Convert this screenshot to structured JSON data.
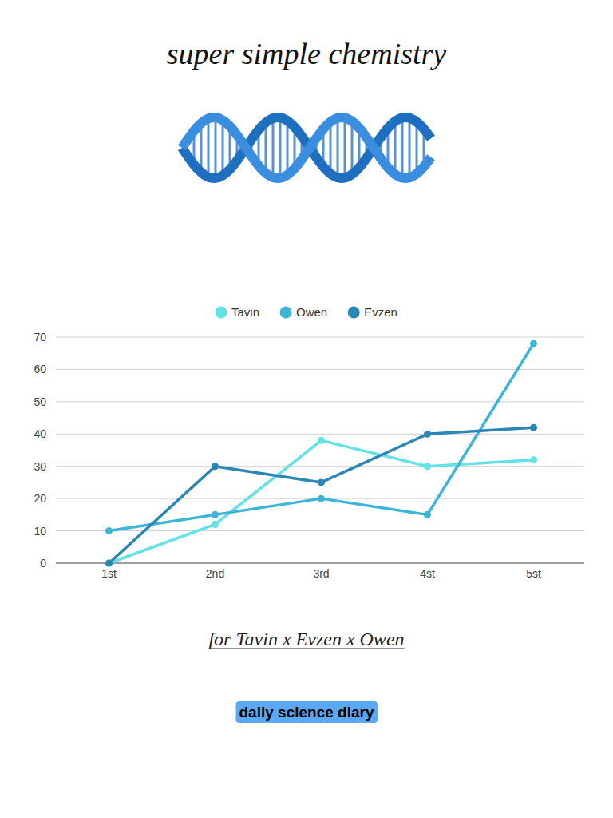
{
  "chart_data": {
    "type": "line",
    "title": "super simple chemistry",
    "subtitle": "for Tavin x Evzen x Owen",
    "annotations": [
      "daily science diary"
    ],
    "categories": [
      "1st",
      "2nd",
      "3rd",
      "4st",
      "5st"
    ],
    "series": [
      {
        "name": "Tavin",
        "color": "#62e1e6",
        "values": [
          0,
          12,
          38,
          30,
          32
        ],
        "marker": "circle"
      },
      {
        "name": "Owen",
        "color": "#3cb5d6",
        "values": [
          10,
          15,
          20,
          15,
          68
        ],
        "marker": "circle"
      },
      {
        "name": "Evzen",
        "color": "#2b86b6",
        "values": [
          0,
          30,
          25,
          40,
          42
        ],
        "marker": "circle"
      }
    ],
    "ylim": [
      0,
      70
    ],
    "yticks": [
      0,
      10,
      20,
      30,
      40,
      50,
      60,
      70
    ],
    "grid": true,
    "legend": "top"
  }
}
